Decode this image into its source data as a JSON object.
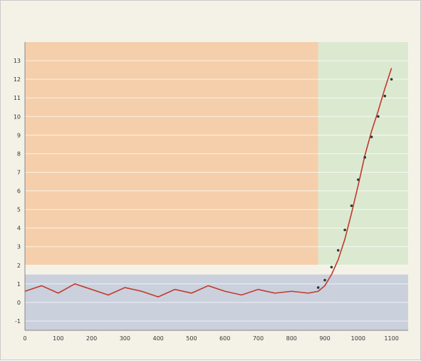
{
  "figure": {
    "title": "",
    "subtitle": ""
  },
  "colors": {
    "background": "#f4f2e7",
    "warm_band": "#f6b27a",
    "cool_band": "#a9b4d6",
    "interglacial_band": "#c9e2c0",
    "series_temperature": "#c0392b",
    "series_co2_points": "#333333"
  },
  "chart_data": {
    "type": "line",
    "title": "",
    "xlabel": "",
    "ylabel": "",
    "x_ticks": [
      0,
      100,
      200,
      300,
      400,
      500,
      600,
      700,
      800,
      900,
      1000,
      1100
    ],
    "y_ticks": [
      -1,
      0,
      1,
      2,
      3,
      4,
      5,
      6,
      7,
      8,
      9,
      10,
      11,
      12,
      13
    ],
    "xlim": [
      0,
      1150
    ],
    "ylim": [
      -1.5,
      14
    ],
    "grid": true,
    "legend": "",
    "annotations": [],
    "series": [
      {
        "x": [
          0,
          50,
          100,
          150,
          200,
          250,
          300,
          350,
          400,
          450,
          500,
          550,
          600,
          650,
          700,
          750,
          800,
          850,
          880,
          900,
          920,
          940,
          960,
          980,
          1000,
          1020,
          1040,
          1060,
          1080,
          1100
        ],
        "values": [
          0.6,
          0.9,
          0.5,
          1.0,
          0.7,
          0.4,
          0.8,
          0.6,
          0.3,
          0.7,
          0.5,
          0.9,
          0.6,
          0.4,
          0.7,
          0.5,
          0.6,
          0.5,
          0.6,
          0.9,
          1.5,
          2.3,
          3.4,
          4.8,
          6.3,
          7.9,
          9.2,
          10.3,
          11.5,
          12.6
        ]
      },
      {
        "x": [
          880,
          900,
          920,
          940,
          960,
          980,
          1000,
          1020,
          1040,
          1060,
          1080,
          1100
        ],
        "values": [
          0.8,
          1.2,
          1.9,
          2.8,
          3.9,
          5.2,
          6.6,
          7.8,
          8.9,
          10.0,
          11.1,
          12.0
        ]
      }
    ],
    "bands": [
      {
        "name": "",
        "x_start": 0,
        "x_end": 880,
        "y_start": 2,
        "y_end": 14,
        "color": "#f6b27a"
      },
      {
        "name": "",
        "x_start": 880,
        "x_end": 1150,
        "y_start": 2,
        "y_end": 14,
        "color": "#c9e2c0"
      },
      {
        "name": "",
        "x_start": 0,
        "x_end": 1150,
        "y_start": -1.5,
        "y_end": 1.5,
        "color": "#a9b4d6"
      }
    ]
  }
}
